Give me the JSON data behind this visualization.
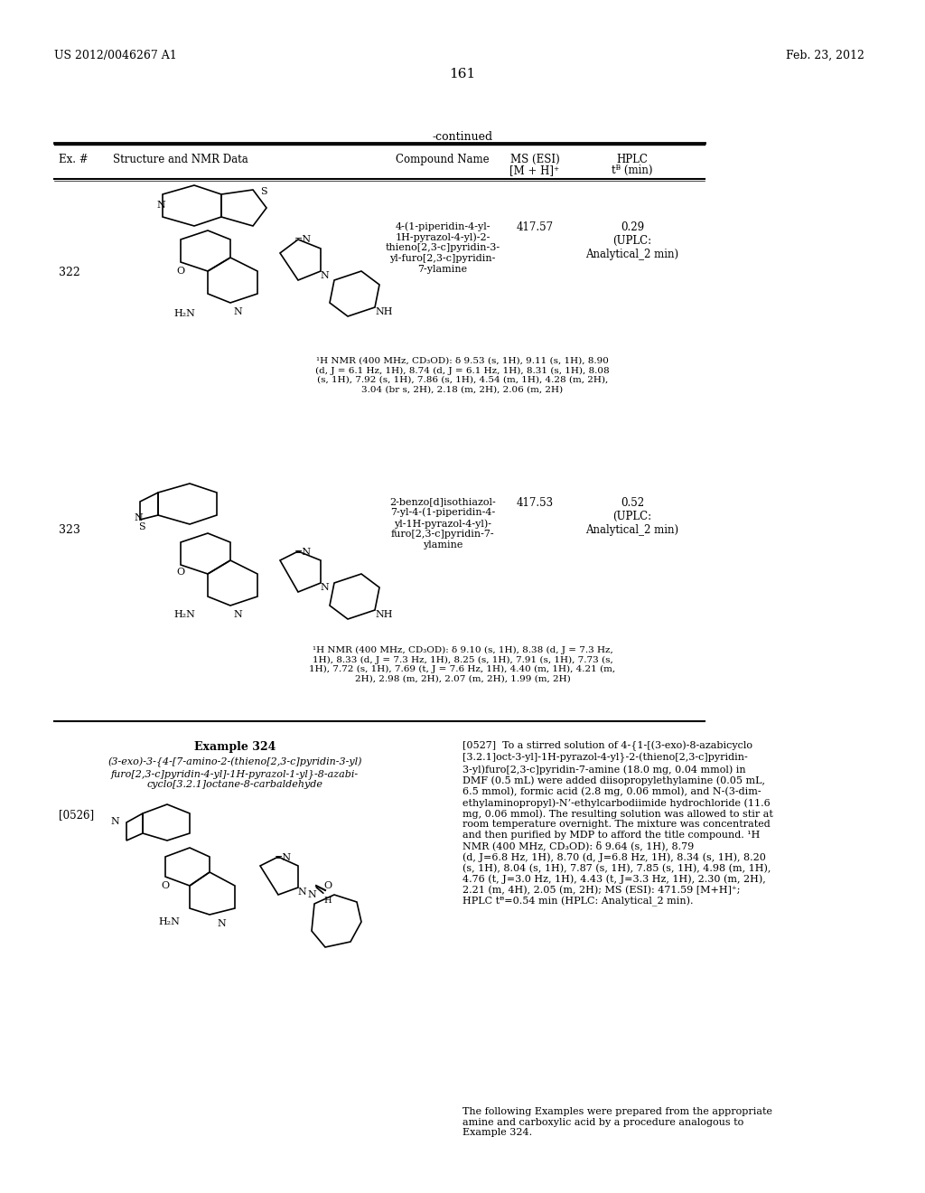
{
  "bg_color": "#ffffff",
  "page_number": "161",
  "patent_left": "US 2012/0046267 A1",
  "patent_right": "Feb. 23, 2012",
  "continued_label": "-continued",
  "table_headers": [
    "Ex. #",
    "Structure and NMR Data",
    "Compound Name",
    "MS (ESI)\n[M + H]⁺",
    "HPLC\ntᴯ (min)"
  ],
  "entry_322": {
    "ex_num": "322",
    "compound_name": "4-(1-piperidin-4-yl-\n1H-pyrazol-4-yl)-2-\nthieno[2,3-c]pyridin-3-\nyl-furo[2,3-c]pyridin-\n7-ylamine",
    "ms": "417.57",
    "hplc": "0.29\n(UPLC:\nAnalytical_2 min)",
    "nmr": "¹H NMR (400 MHz, CD₃OD): δ 9.53 (s, 1H), 9.11 (s, 1H), 8.90\n(d, J = 6.1 Hz, 1H), 8.74 (d, J = 6.1 Hz, 1H), 8.31 (s, 1H), 8.08\n(s, 1H), 7.92 (s, 1H), 7.86 (s, 1H), 4.54 (m, 1H), 4.28 (m, 2H),\n3.04 (br s, 2H), 2.18 (m, 2H), 2.06 (m, 2H)"
  },
  "entry_323": {
    "ex_num": "323",
    "compound_name": "2-benzo[d]isothiazol-\n7-yl-4-(1-piperidin-4-\nyl-1H-pyrazol-4-yl)-\nfuro[2,3-c]pyridin-7-\nylamine",
    "ms": "417.53",
    "hplc": "0.52\n(UPLC:\nAnalytical_2 min)",
    "nmr": "¹H NMR (400 MHz, CD₃OD): δ 9.10 (s, 1H), 8.38 (d, J = 7.3 Hz,\n1H), 8.33 (d, J = 7.3 Hz, 1H), 8.25 (s, 1H), 7.91 (s, 1H), 7.73 (s,\n1H), 7.72 (s, 1H), 7.69 (t, J = 7.6 Hz, 1H), 4.40 (m, 1H), 4.21 (m,\n2H), 2.98 (m, 2H), 2.07 (m, 2H), 1.99 (m, 2H)"
  },
  "example_324": {
    "title": "Example 324",
    "subtitle": "(3-exo)-3-{4-[7-amino-2-(thieno[2,3-c]pyridin-3-yl)\nfuro[2,3-c]pyridin-4-yl]-1H-pyrazol-1-yl}-8-azabi-\ncyclo[3.2.1]octane-8-carbaldehyde",
    "para_num": "[0526]",
    "para_text": "[0527]  To a stirred solution of 4-{1-[(3-exo)-8-azabicyclo\n[3.2.1]oct-3-yl]-1H-pyrazol-4-yl}-2-(thieno[2,3-c]pyridin-\n3-yl)furo[2,3-c]pyridin-7-amine (18.0 mg, 0.04 mmol) in\nDMF (0.5 mL) were added diisopropylethylamine (0.05 mL,\n6.5 mmol), formic acid (2.8 mg, 0.06 mmol), and N-(3-dim-\nethylaminopropyl)-N’-ethylcarbodiimide hydrochloride (11.6\nmg, 0.06 mmol). The resulting solution was allowed to stir at\nroom temperature overnight. The mixture was concentrated\nand then purified by MDP to afford the title compound. ¹H\nNMR (400 MHz, CD₃OD): δ 9.64 (s, 1H), 8.79\n(d, J=6.8 Hz, 1H), 8.70 (d, J=6.8 Hz, 1H), 8.34 (s, 1H), 8.20\n(s, 1H), 8.04 (s, 1H), 7.87 (s, 1H), 7.85 (s, 1H), 4.98 (m, 1H),\n4.76 (t, J=3.0 Hz, 1H), 4.43 (t, J=3.3 Hz, 1H), 2.30 (m, 2H),\n2.21 (m, 4H), 2.05 (m, 2H); MS (ESI): 471.59 [M+H]⁺;\nHPLC tᴯ=0.54 min (HPLC: Analytical_2 min).",
    "following_text": "The following Examples were prepared from the appropriate\namine and carboxylic acid by a procedure analogous to\nExample 324."
  }
}
